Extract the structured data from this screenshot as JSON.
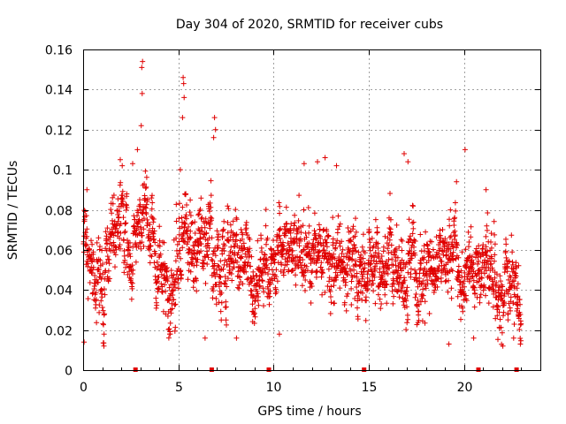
{
  "chart_data": {
    "type": "scatter",
    "title": "Day 304 of 2020, SRMTID for receiver cubs",
    "xlabel": "GPS time / hours",
    "ylabel": "SRMTID / TECUs",
    "xlim": [
      0,
      24
    ],
    "ylim": [
      0,
      0.16
    ],
    "grid": true,
    "legend": "none",
    "x_ticks": [
      0,
      5,
      10,
      15,
      20
    ],
    "y_ticks": [
      0,
      0.02,
      0.04,
      0.06,
      0.08,
      0.1,
      0.12,
      0.14,
      0.16
    ],
    "x_tick_labels": [
      "0",
      "5",
      "10",
      "15",
      "20"
    ],
    "y_tick_labels": [
      "0",
      "0.02",
      "0.04",
      "0.06",
      "0.08",
      "0.1",
      "0.12",
      "0.14",
      "0.16"
    ],
    "marker_color": "#e00000",
    "gap_marks_hours": [
      2.75,
      6.75,
      9.75,
      14.75,
      20.75,
      22.75
    ],
    "series": [
      {
        "name": "SRMTID",
        "x_start": 0.02,
        "x_step": 0.01,
        "trend_hours": [
          0,
          1,
          2,
          3,
          3.2,
          4,
          4.6,
          5,
          5.3,
          6,
          6.6,
          7,
          8,
          9,
          10,
          11,
          12,
          13,
          14,
          15,
          16,
          17,
          18,
          19,
          20,
          21,
          22,
          23
        ],
        "trend_values": [
          0.055,
          0.05,
          0.068,
          0.062,
          0.085,
          0.048,
          0.04,
          0.06,
          0.078,
          0.052,
          0.07,
          0.05,
          0.058,
          0.045,
          0.05,
          0.058,
          0.062,
          0.052,
          0.05,
          0.046,
          0.05,
          0.056,
          0.05,
          0.047,
          0.05,
          0.052,
          0.042,
          0.04
        ],
        "peaks": [
          {
            "hour": 3.12,
            "value": 0.154
          },
          {
            "hour": 3.08,
            "value": 0.151
          },
          {
            "hour": 3.1,
            "value": 0.138
          },
          {
            "hour": 3.05,
            "value": 0.122
          },
          {
            "hour": 5.25,
            "value": 0.146
          },
          {
            "hour": 5.28,
            "value": 0.143
          },
          {
            "hour": 5.3,
            "value": 0.136
          },
          {
            "hour": 5.22,
            "value": 0.126
          },
          {
            "hour": 6.9,
            "value": 0.126
          },
          {
            "hour": 6.95,
            "value": 0.12
          },
          {
            "hour": 6.85,
            "value": 0.116
          },
          {
            "hour": 1.95,
            "value": 0.105
          },
          {
            "hour": 2.05,
            "value": 0.102
          },
          {
            "hour": 2.6,
            "value": 0.103
          },
          {
            "hour": 2.85,
            "value": 0.11
          },
          {
            "hour": 5.1,
            "value": 0.1
          },
          {
            "hour": 12.7,
            "value": 0.106
          },
          {
            "hour": 12.3,
            "value": 0.104
          },
          {
            "hour": 13.3,
            "value": 0.102
          },
          {
            "hour": 16.85,
            "value": 0.108
          },
          {
            "hour": 17.05,
            "value": 0.104
          },
          {
            "hour": 20.05,
            "value": 0.11
          },
          {
            "hour": 19.6,
            "value": 0.094
          },
          {
            "hour": 11.6,
            "value": 0.103
          },
          {
            "hour": 0.2,
            "value": 0.09
          },
          {
            "hour": 21.15,
            "value": 0.09
          },
          {
            "hour": 0.05,
            "value": 0.014
          },
          {
            "hour": 1.1,
            "value": 0.018
          },
          {
            "hour": 4.55,
            "value": 0.018
          },
          {
            "hour": 6.4,
            "value": 0.016
          },
          {
            "hour": 8.05,
            "value": 0.016
          },
          {
            "hour": 10.3,
            "value": 0.018
          },
          {
            "hour": 19.2,
            "value": 0.013
          },
          {
            "hour": 20.5,
            "value": 0.016
          },
          {
            "hour": 22.6,
            "value": 0.016
          },
          {
            "hour": 22.95,
            "value": 0.013
          }
        ]
      }
    ]
  }
}
